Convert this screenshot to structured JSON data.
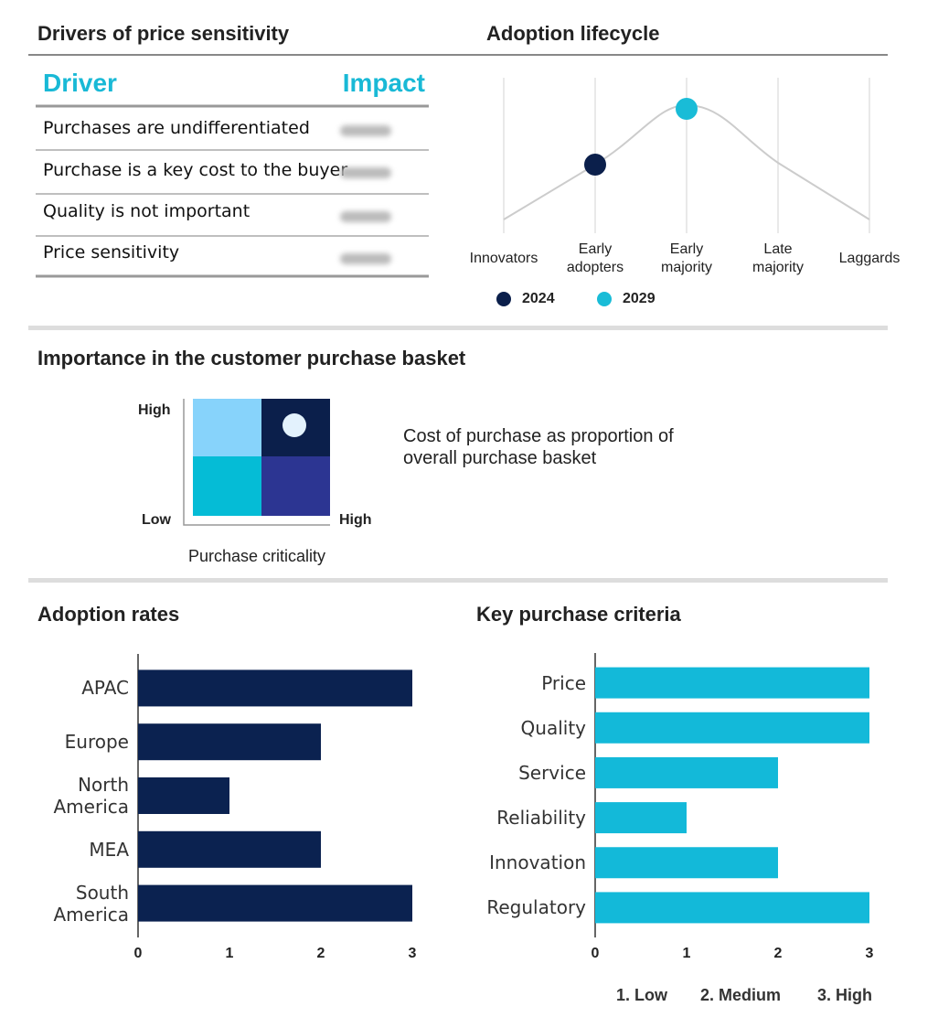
{
  "price_sensitivity": {
    "title": "Drivers of price sensitivity",
    "columns": [
      "Driver",
      "Impact"
    ],
    "rows": [
      "Purchases are undifferentiated",
      "Purchase is a key cost to the buyer",
      "Quality is not important",
      "Price sensitivity"
    ]
  },
  "chart_data": [
    {
      "type": "lifecycle",
      "title": "Adoption lifecycle",
      "categories": [
        "Innovators",
        "Early adopters",
        "Early majority",
        "Late majority",
        "Laggards"
      ],
      "series": [
        {
          "name": "2024",
          "color": "#0b1f4b",
          "stage": "Early adopters"
        },
        {
          "name": "2029",
          "color": "#19bcd7",
          "stage": "Early majority"
        }
      ]
    },
    {
      "type": "bar",
      "orientation": "horizontal",
      "title": "Adoption rates",
      "categories": [
        "APAC",
        "Europe",
        "North America",
        "MEA",
        "South America"
      ],
      "values": [
        3,
        2,
        1,
        2,
        3
      ],
      "color": "#0b2250",
      "xlim": [
        0,
        3
      ],
      "xticks": [
        0,
        1,
        2,
        3
      ]
    },
    {
      "type": "bar",
      "orientation": "horizontal",
      "title": "Key purchase criteria",
      "categories": [
        "Price",
        "Quality",
        "Service",
        "Reliability",
        "Innovation",
        "Regulatory"
      ],
      "values": [
        3,
        3,
        2,
        1,
        2,
        3
      ],
      "color": "#13b9d9",
      "xlim": [
        0,
        3
      ],
      "xticks": [
        0,
        1,
        2,
        3
      ],
      "scale_labels": [
        "1. Low",
        "2. Medium",
        "3. High"
      ]
    }
  ],
  "purchase_basket": {
    "title": "Importance in the customer purchase basket",
    "y_high": "High",
    "y_low": "Low",
    "x_high": "High",
    "x_title": "Purchase criticality",
    "description": "Cost of purchase as proportion of overall purchase basket"
  }
}
